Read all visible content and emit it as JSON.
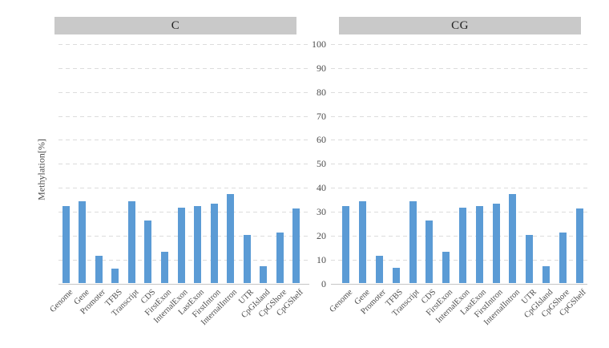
{
  "chart_data": {
    "type": "bar",
    "title": "",
    "ylabel": "Methylation[%]",
    "xlabel": "",
    "ylim": [
      0,
      100
    ],
    "yticks": [
      0,
      10,
      20,
      30,
      40,
      50,
      60,
      70,
      80,
      90,
      100
    ],
    "grid": "horizontal-dashed",
    "legend": "none",
    "bar_color": "#5b9bd5",
    "header_bg": "#c9c9c9",
    "gridline_color": "#dcdcdc",
    "axis_color": "#c6c6c6",
    "text_color": "#4d4d4d",
    "categories": [
      "Genome",
      "Gene",
      "Promoter",
      "TFBS",
      "Transcript",
      "CDS",
      "FirstExon",
      "InternalExon",
      "LastExon",
      "FirstIntron",
      "InternalIntron",
      "UTR",
      "CpGIsland",
      "CpGShore",
      "CpGShelf"
    ],
    "panels": [
      {
        "label": "C",
        "values": [
          32.3,
          34.3,
          11.7,
          6.3,
          34.4,
          26.3,
          13.3,
          31.5,
          32.2,
          33.3,
          37.3,
          20.2,
          7.1,
          21.2,
          31.2
        ]
      },
      {
        "label": "CG",
        "values": [
          32.3,
          34.4,
          11.7,
          6.4,
          34.4,
          26.4,
          13.4,
          31.6,
          32.3,
          33.4,
          37.4,
          20.3,
          7.3,
          21.3,
          31.3
        ]
      }
    ]
  }
}
